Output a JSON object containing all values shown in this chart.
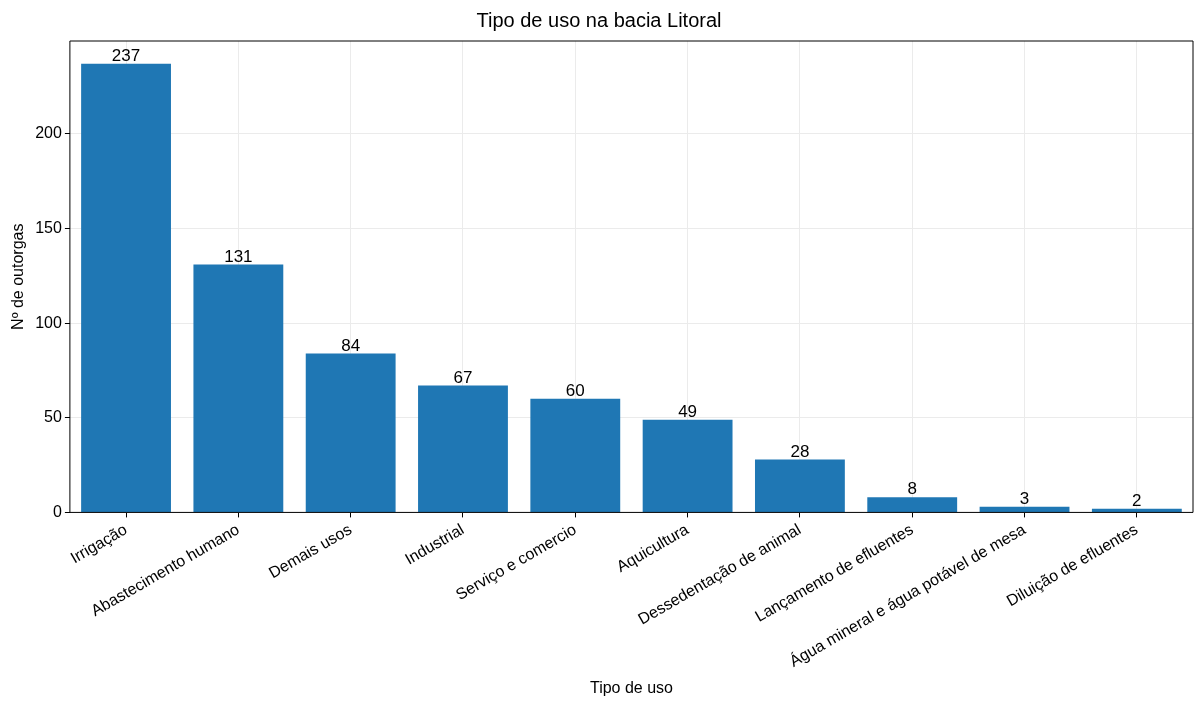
{
  "chart_data": {
    "type": "bar",
    "title": "Tipo de uso na bacia Litoral",
    "xlabel": "Tipo de uso",
    "ylabel": "Nº de outorgas",
    "categories": [
      "Irrigação",
      "Abastecimento humano",
      "Demais usos",
      "Industrial",
      "Serviço e comercio",
      "Aquicultura",
      "Dessedentação de animal",
      "Lançamento de efluentes",
      "Água mineral e água potável de mesa",
      "Diluição de efluentes"
    ],
    "values": [
      237,
      131,
      84,
      67,
      60,
      49,
      28,
      8,
      3,
      2
    ],
    "color": "#1f77b4",
    "ylim": [
      0,
      249
    ],
    "yticks": [
      0,
      50,
      100,
      150,
      200
    ],
    "grid": true,
    "data_labels": true
  }
}
